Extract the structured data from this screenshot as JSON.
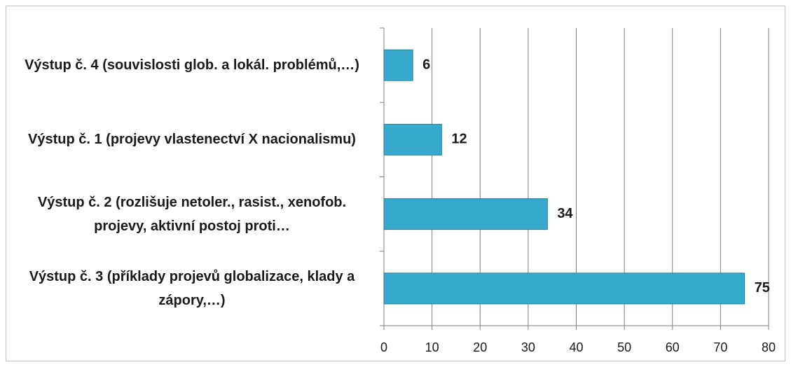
{
  "chart_data": {
    "type": "bar",
    "orientation": "horizontal",
    "categories": [
      "Výstup č. 4 (souvislosti glob. a lokál. problémů,…)",
      "Výstup č. 1 (projevy vlastenectví X nacionalismu)",
      "Výstup č. 2 (rozlišuje netoler., rasist., xenofob. projevy, aktivní postoj proti…",
      "Výstup č. 3 (příklady projevů globalizace, klady a zápory,…)"
    ],
    "values": [
      6,
      12,
      34,
      75
    ],
    "color": "#36a9cc",
    "xlim": [
      0,
      80
    ],
    "xticks": [
      0,
      10,
      20,
      30,
      40,
      50,
      60,
      70,
      80
    ],
    "grid": true
  }
}
